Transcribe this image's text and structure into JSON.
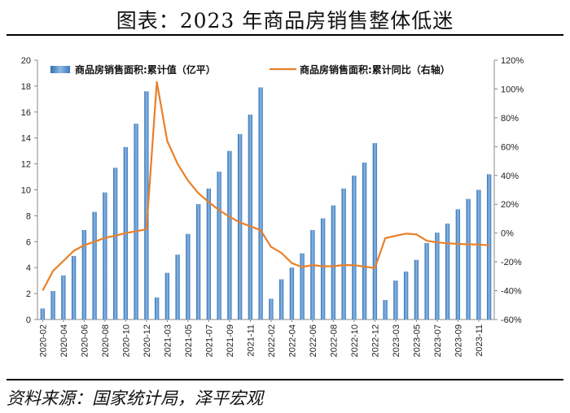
{
  "title": "图表：2023 年商品房销售整体低迷",
  "source": "资料来源：国家统计局，泽平宏观",
  "chart_data": {
    "type": "bar+line",
    "categories": [
      "2020-02",
      "2020-03",
      "2020-04",
      "2020-05",
      "2020-06",
      "2020-07",
      "2020-08",
      "2020-09",
      "2020-10",
      "2020-11",
      "2020-12",
      "2021-02",
      "2021-03",
      "2021-04",
      "2021-05",
      "2021-06",
      "2021-07",
      "2021-08",
      "2021-09",
      "2021-10",
      "2021-11",
      "2021-12",
      "2022-02",
      "2022-03",
      "2022-04",
      "2022-05",
      "2022-06",
      "2022-07",
      "2022-08",
      "2022-09",
      "2022-10",
      "2022-11",
      "2022-12",
      "2023-02",
      "2023-03",
      "2023-04",
      "2023-05",
      "2023-06",
      "2023-07",
      "2023-08",
      "2023-09",
      "2023-10",
      "2023-11",
      "2023-12"
    ],
    "tick_labels": [
      "2020-02",
      "2020-04",
      "2020-06",
      "2020-08",
      "2020-10",
      "2020-12",
      "2021-03",
      "2021-05",
      "2021-07",
      "2021-09",
      "2021-11",
      "2022-02",
      "2022-04",
      "2022-06",
      "2022-08",
      "2022-10",
      "2022-12",
      "2023-03",
      "2023-05",
      "2023-07",
      "2023-09",
      "2023-11"
    ],
    "series": [
      {
        "name": "商品房销售面积:累计值（亿平）",
        "type": "bar",
        "axis": "left",
        "color": "#4a86c5",
        "values": [
          0.85,
          2.2,
          3.4,
          4.9,
          6.9,
          8.3,
          9.8,
          11.7,
          13.3,
          15.1,
          17.6,
          1.7,
          3.6,
          5.0,
          6.6,
          8.9,
          10.1,
          11.4,
          13.0,
          14.3,
          15.8,
          17.9,
          1.6,
          3.1,
          4.0,
          5.1,
          6.9,
          7.8,
          8.8,
          10.1,
          11.1,
          12.1,
          13.6,
          1.5,
          3.0,
          3.7,
          4.6,
          5.9,
          6.7,
          7.4,
          8.5,
          9.3,
          10.0,
          11.2
        ]
      },
      {
        "name": "商品房销售面积:累计同比（右轴）",
        "type": "line",
        "axis": "right",
        "color": "#e8802a",
        "values": [
          -39.9,
          -26.3,
          -19.3,
          -12.3,
          -8.4,
          -6.0,
          -3.3,
          -1.8,
          0.0,
          1.3,
          2.6,
          104.9,
          63.8,
          48.1,
          36.4,
          27.7,
          21.5,
          15.9,
          11.3,
          7.3,
          4.8,
          1.9,
          -9.6,
          -13.8,
          -20.9,
          -23.6,
          -22.2,
          -23.1,
          -23.0,
          -22.2,
          -22.3,
          -23.3,
          -24.3,
          -3.6,
          -1.8,
          -0.4,
          -0.9,
          -5.3,
          -6.5,
          -7.1,
          -7.5,
          -7.8,
          -8.0,
          -8.5
        ]
      }
    ],
    "y_left": {
      "min": 0,
      "max": 20,
      "step": 2,
      "ticks": [
        "0",
        "2",
        "4",
        "6",
        "8",
        "10",
        "12",
        "14",
        "16",
        "18",
        "20"
      ]
    },
    "y_right": {
      "min": -60,
      "max": 120,
      "step": 20,
      "ticks": [
        "-60%",
        "-40%",
        "-20%",
        "0%",
        "20%",
        "40%",
        "60%",
        "80%",
        "100%",
        "120%"
      ]
    },
    "legend": [
      "商品房销售面积:累计值（亿平）",
      "商品房销售面积:累计同比（右轴）"
    ]
  }
}
